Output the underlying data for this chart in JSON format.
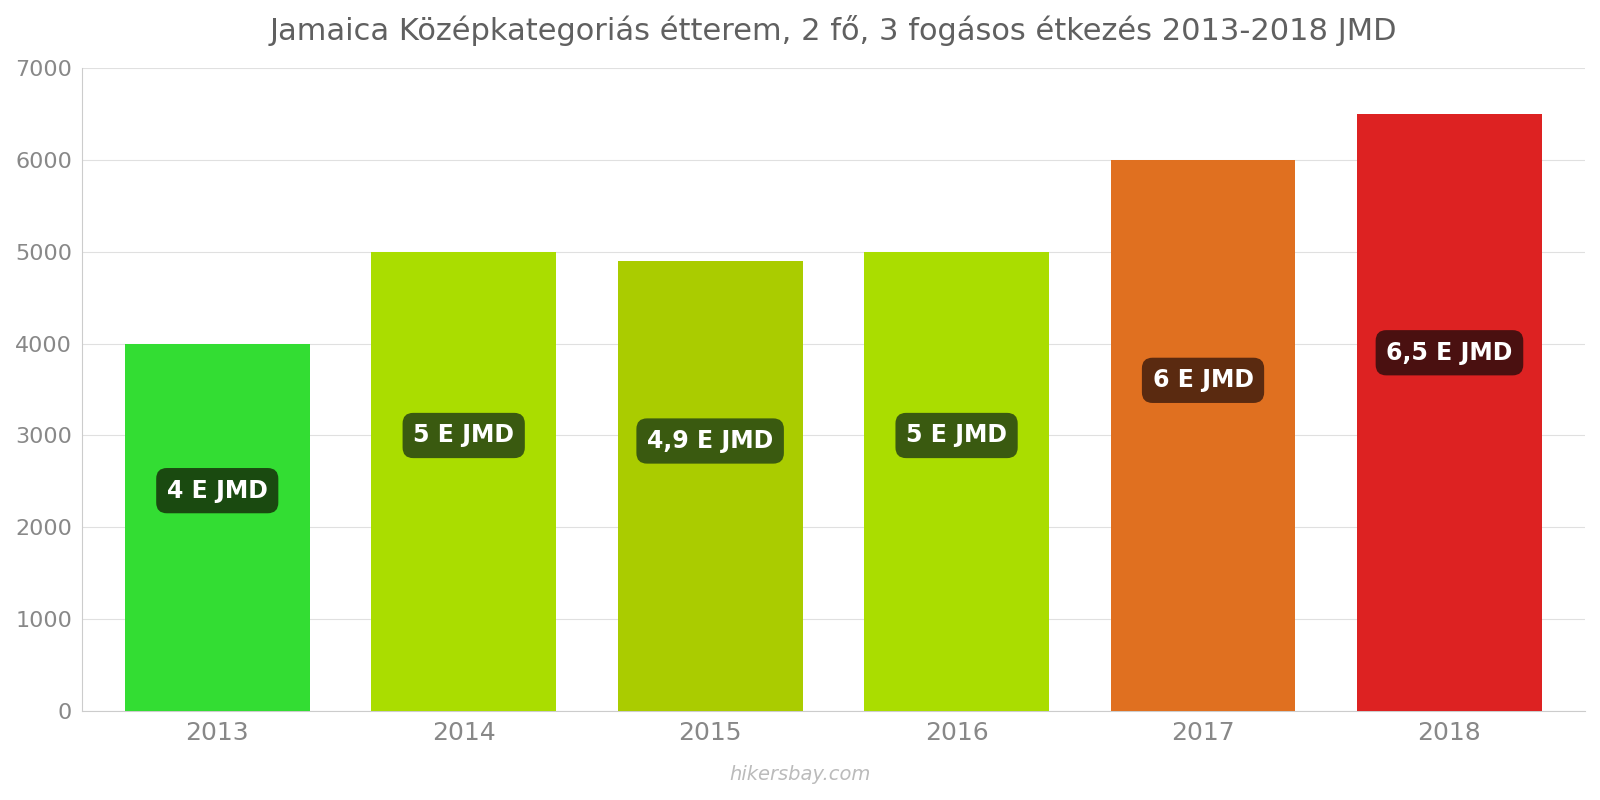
{
  "years": [
    "2013",
    "2014",
    "2015",
    "2016",
    "2017",
    "2018"
  ],
  "values": [
    4000,
    5000,
    4900,
    5000,
    6000,
    6500
  ],
  "bar_colors": [
    "#33dd33",
    "#aadd00",
    "#aacc00",
    "#aadd00",
    "#e07020",
    "#dd2222"
  ],
  "label_texts": [
    "4 E JMD",
    "5 E JMD",
    "4,9 E JMD",
    "5 E JMD",
    "6 E JMD",
    "6,5 E JMD"
  ],
  "label_bg_colors": [
    "#1a4a10",
    "#3a5a10",
    "#3a5a10",
    "#3a5a10",
    "#5a2a10",
    "#4a1010"
  ],
  "title": "Jamaica Középkategoriás étterem, 2 fő, 3 fogásos étkezés 2013-2018 JMD",
  "ylim": [
    0,
    7000
  ],
  "yticks": [
    0,
    1000,
    2000,
    3000,
    4000,
    5000,
    6000,
    7000
  ],
  "watermark": "hikersbay.com",
  "background_color": "#ffffff",
  "title_fontsize": 22,
  "bar_width": 0.75
}
